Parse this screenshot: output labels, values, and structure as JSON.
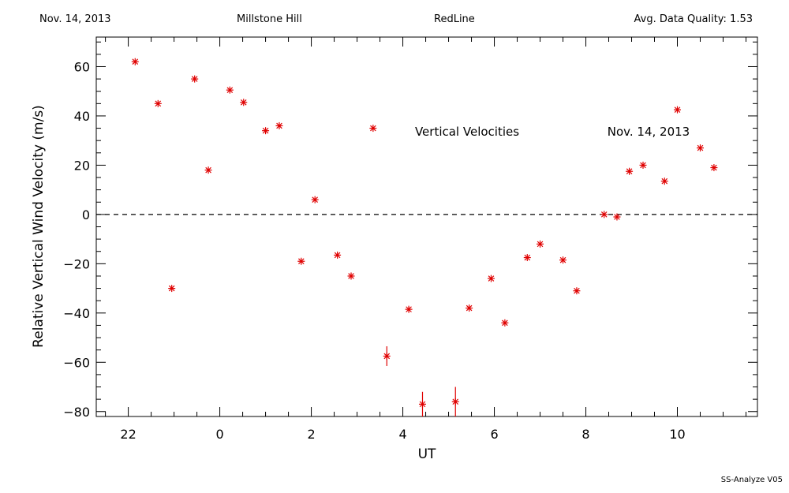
{
  "header": {
    "date": "Nov. 14, 2013",
    "site": "Millstone Hill",
    "instrument": "RedLine",
    "quality": "Avg. Data Quality: 1.53"
  },
  "footer": "SS-Analyze V05",
  "chart_data": {
    "type": "scatter",
    "title": "Vertical Velocities",
    "subtitle": "Nov. 14, 2013",
    "xlabel": "UT",
    "ylabel": "Relative Vertical Wind Velocity (m/s)",
    "xlim": [
      -2.7,
      11.75
    ],
    "ylim": [
      -82,
      72
    ],
    "xticks": [
      22,
      0,
      2,
      4,
      6,
      8,
      10
    ],
    "xtick_labels": [
      "22",
      "0",
      "2",
      "4",
      "6",
      "8",
      "10"
    ],
    "yticks": [
      60,
      40,
      20,
      0,
      -20,
      -40,
      -60,
      -80
    ],
    "ytick_labels": [
      "60",
      "40",
      "20",
      "0",
      "−20",
      "−40",
      "−60",
      "−80"
    ],
    "zero_line": "dashed",
    "marker_color": "#e00000",
    "series": [
      {
        "x": [
          -1.85,
          -1.35,
          -1.05,
          -0.55,
          -0.25,
          0.22,
          0.52,
          1.0,
          1.3,
          1.78,
          2.08,
          2.57,
          2.87,
          3.35,
          3.65,
          4.13,
          4.43,
          5.15,
          5.45,
          5.93,
          6.23,
          6.72,
          7.0,
          7.5,
          7.8,
          8.4,
          8.68,
          8.95,
          9.25,
          9.72,
          10.0,
          10.5,
          10.8
        ],
        "y": [
          62,
          45,
          -30,
          55,
          18,
          50.5,
          45.5,
          34,
          36,
          -19,
          6,
          -16.5,
          -25,
          35,
          -57.5,
          -38.5,
          -77,
          -76,
          -38,
          -26,
          -44,
          -17.5,
          -12,
          -18.5,
          -31,
          0,
          -1,
          17.5,
          20,
          13.5,
          42.5,
          27,
          19
        ],
        "err": [
          0,
          0,
          0,
          0,
          0,
          0,
          0,
          0,
          0,
          0,
          0,
          0,
          0,
          0,
          4,
          1,
          5,
          6,
          0,
          0,
          0,
          0,
          0,
          0,
          0,
          0,
          0,
          0,
          0,
          0,
          0,
          0,
          0
        ]
      }
    ]
  }
}
